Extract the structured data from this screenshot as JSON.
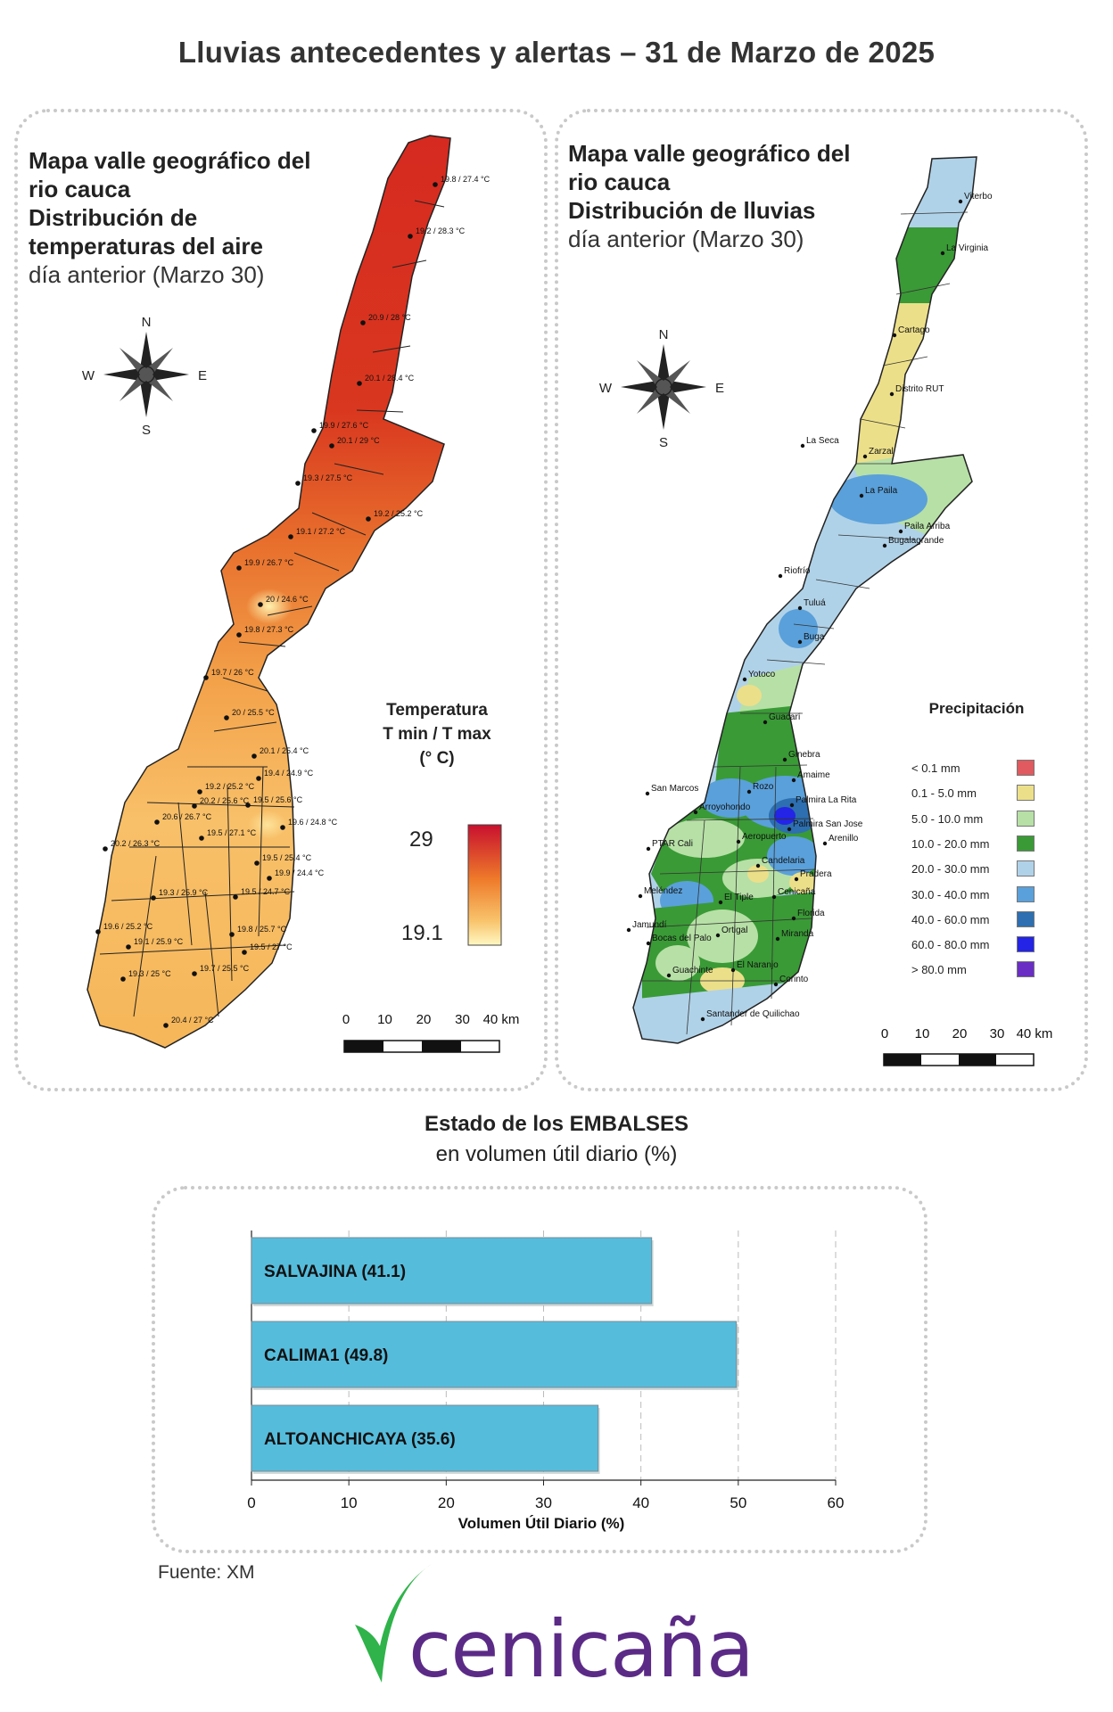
{
  "title": "Lluvias antecedentes y alertas – 31 de Marzo de 2025",
  "temp_panel": {
    "title_line1": "Mapa valle geográfico del",
    "title_line2": "rio cauca",
    "title_line3": "Distribución de",
    "title_line4": "temperaturas del aire",
    "subtitle": "día anterior (Marzo 30)",
    "compass": {
      "n": "N",
      "s": "S",
      "e": "E",
      "w": "W"
    },
    "legend_title_1": "Temperatura",
    "legend_title_2": "T min / T max",
    "legend_title_3": "(° C)",
    "legend_max": "29",
    "legend_min": "19.1",
    "scale_labels": [
      "0",
      "10",
      "20",
      "30",
      "40 km"
    ],
    "stations": [
      "19.8 / 27.4 °C",
      "19.2 / 28.3 °C",
      "20.9 / 28 °C",
      "20.1 / 28.4 °C",
      "19.9 / 27.6 °C",
      "20.1 / 29 °C",
      "19.3 / 27.5 °C",
      "19.2 / 25.2 °C",
      "19.1 / 27.2 °C",
      "19.9 / 26.7 °C",
      "20 / 24.6 °C",
      "19.8 / 27.3 °C",
      "19.7 / 26 °C",
      "20 / 25.5 °C",
      "20.1 / 25.4 °C",
      "19.4 / 24.9 °C",
      "19.2 / 25.2 °C",
      "20.2 / 25.6 °C",
      "19.5 / 25.6 °C",
      "20.6 / 26.7 °C",
      "19.6 / 24.8 °C",
      "20.2 / 26.3 °C",
      "19.5 / 27.1 °C",
      "19.5 / 25.4 °C",
      "19.9 / 24.4 °C",
      "19.3 / 25.9 °C",
      "19.5 / 24.7 °C",
      "19.6 / 25.2 °C",
      "19.1 / 25.9 °C",
      "19.8 / 25.7 °C",
      "19.5 / 27 °C",
      "19.7 / 25.5 °C",
      "19.3 / 25 °C",
      "20.4 / 27 °C"
    ]
  },
  "rain_panel": {
    "title_line1": "Mapa valle geográfico del",
    "title_line2": "rio cauca",
    "title_line3": "Distribución de lluvias",
    "subtitle": "día anterior (Marzo 30)",
    "compass": {
      "n": "N",
      "s": "S",
      "e": "E",
      "w": "W"
    },
    "legend_title": "Precipitación",
    "legend": [
      {
        "label": "< 0.1 mm",
        "color": "#e05a5f"
      },
      {
        "label": "0.1 - 5.0 mm",
        "color": "#ecdf89"
      },
      {
        "label": "5.0 - 10.0 mm",
        "color": "#b7e0a6"
      },
      {
        "label": "10.0 - 20.0 mm",
        "color": "#3a9a36"
      },
      {
        "label": "20.0 - 30.0 mm",
        "color": "#b0d2e8"
      },
      {
        "label": "30.0 - 40.0 mm",
        "color": "#5aa0da"
      },
      {
        "label": "40.0 - 60.0 mm",
        "color": "#2d6fb0"
      },
      {
        "label": "60.0 - 80.0 mm",
        "color": "#2424e6"
      },
      {
        "label": "> 80.0 mm",
        "color": "#6a2ec4"
      }
    ],
    "scale_labels": [
      "0",
      "10",
      "20",
      "30",
      "40 km"
    ],
    "places": [
      "Viterbo",
      "La Virginia",
      "Cartago",
      "Distrito RUT",
      "La Seca",
      "Zarzal",
      "La Paila",
      "Paila Arriba",
      "Bugalagrande",
      "Riofrío",
      "Tuluá",
      "Buga",
      "Yotoco",
      "Guacarí",
      "Ginebra",
      "Amaime",
      "San Marcos",
      "Rozo",
      "Palmira La Rita",
      "Arroyohondo",
      "Palmira San Jose",
      "PTAR Cali",
      "Aeropuerto",
      "Arenillo",
      "Candelaria",
      "Pradera",
      "Meléndez",
      "El Tiple",
      "Cenicaña",
      "Jamundí",
      "Bocas del Palo",
      "Ortigal",
      "Florida",
      "Miranda",
      "El Naranjo",
      "Guachinte",
      "Corinto",
      "Santander de Quilichao"
    ]
  },
  "reservoirs": {
    "title": "Estado de los EMBALSES",
    "subtitle": "en volumen útil diario (%)",
    "xlabel": "Volumen Útil Diario (%)",
    "bar_color": "#56bcdc"
  },
  "chart_data": {
    "type": "bar",
    "orientation": "horizontal",
    "categories": [
      "SALVAJINA",
      "CALIMA1",
      "ALTOANCHICAYA"
    ],
    "bar_labels": [
      "SALVAJINA (41.1)",
      "CALIMA1 (49.8)",
      "ALTOANCHICAYA (35.6)"
    ],
    "values": [
      41.1,
      49.8,
      35.6
    ],
    "xlabel": "Volumen Útil Diario (%)",
    "xlim": [
      0,
      60
    ],
    "xticks": [
      "0",
      "10",
      "20",
      "30",
      "40",
      "50",
      "60"
    ],
    "grid": true
  },
  "source": "Fuente: XM",
  "logo": {
    "text": "cenicaña",
    "color": "#5b2a86",
    "leaf_color": "#2fb34a"
  }
}
